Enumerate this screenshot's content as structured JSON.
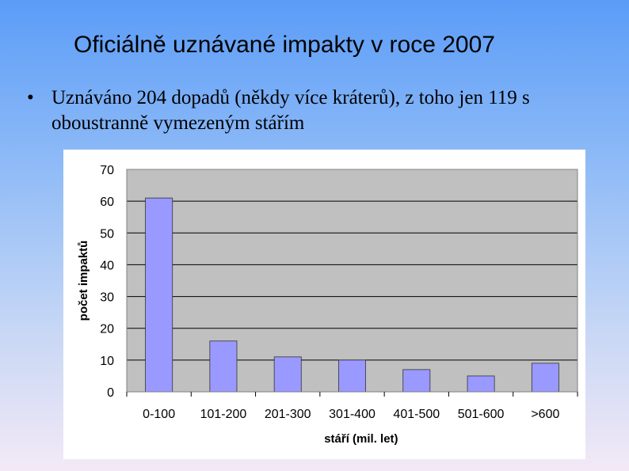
{
  "slide": {
    "title": "Oficiálně uznávané impakty v roce 2007",
    "bullet_char": "•",
    "bullet_text": "Uznáváno 204 dopadů (někdy více kráterů), z toho jen 119 s oboustranně vymezeným stářím"
  },
  "chart_data": {
    "type": "bar",
    "categories": [
      "0-100",
      "101-200",
      "201-300",
      "301-400",
      "401-500",
      "501-600",
      ">600"
    ],
    "values": [
      61,
      16,
      11,
      10,
      7,
      5,
      9
    ],
    "xlabel": "stáří (mil. let)",
    "ylabel": "počet impaktů",
    "ylim": [
      0,
      70
    ],
    "yticks": [
      0,
      10,
      20,
      30,
      40,
      50,
      60,
      70
    ],
    "grid": true,
    "legend": "none",
    "colors": {
      "bar": "#9999ff",
      "bar_border": "#333333",
      "plot_background": "#c0c0c0",
      "grid": "#000000"
    }
  }
}
